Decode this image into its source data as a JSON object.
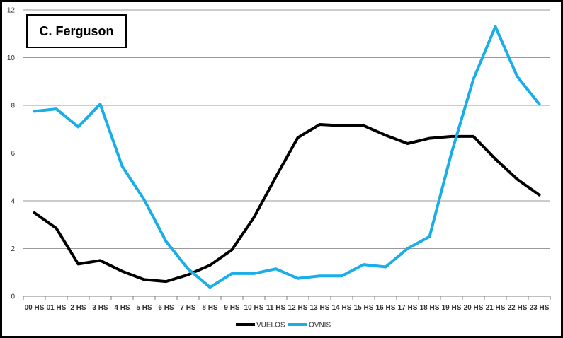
{
  "chart_data": {
    "type": "line",
    "title": "C. Ferguson",
    "xlabel": "",
    "ylabel": "",
    "ylim": [
      0,
      12
    ],
    "yticks": [
      0,
      2,
      4,
      6,
      8,
      10,
      12
    ],
    "grid": true,
    "legend_position": "bottom",
    "categories": [
      "00 HS",
      "01 HS",
      "2 HS",
      "3 HS",
      "4 HS",
      "5 HS",
      "6 HS",
      "7 HS",
      "8 HS",
      "9 HS",
      "10 HS",
      "11 HS",
      "12 HS",
      "13 HS",
      "14 HS",
      "15 HS",
      "16 HS",
      "17 HS",
      "18 HS",
      "19 HS",
      "20 HS",
      "21 HS",
      "22 HS",
      "23 HS"
    ],
    "series": [
      {
        "name": "VUELOS",
        "color": "#000000",
        "values": [
          3.5,
          2.85,
          1.35,
          1.5,
          1.05,
          0.7,
          0.62,
          0.9,
          1.3,
          1.95,
          3.3,
          5.0,
          6.65,
          7.2,
          7.15,
          7.15,
          6.75,
          6.4,
          6.62,
          6.7,
          6.7,
          5.75,
          4.9,
          4.25
        ]
      },
      {
        "name": "OVNIS",
        "color": "#1aaee8",
        "values": [
          7.75,
          7.85,
          7.1,
          8.05,
          5.45,
          4.05,
          2.3,
          1.15,
          0.38,
          0.95,
          0.95,
          1.15,
          0.75,
          0.85,
          0.85,
          1.33,
          1.23,
          2.0,
          2.5,
          6.0,
          9.1,
          11.3,
          9.2,
          8.05
        ]
      }
    ]
  }
}
